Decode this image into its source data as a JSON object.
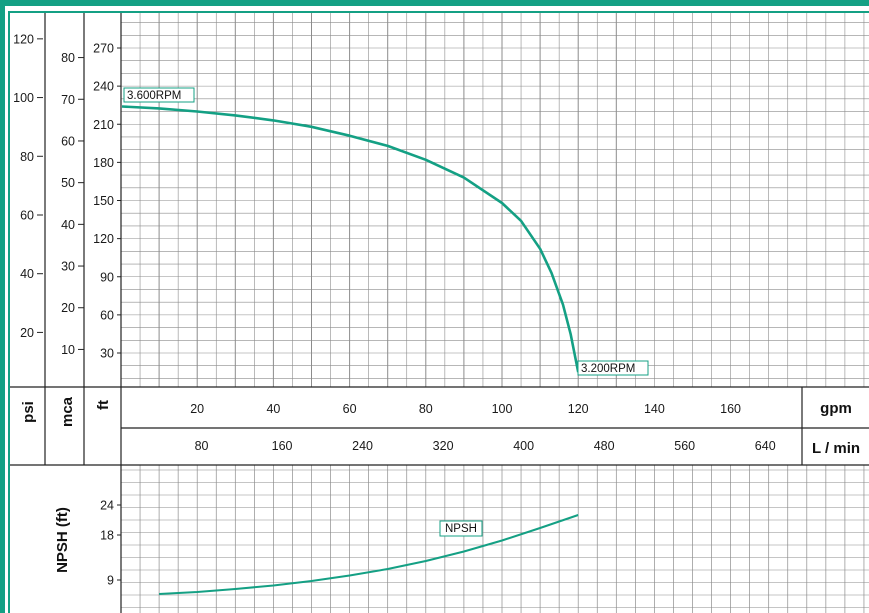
{
  "colors": {
    "frame": "#14a084",
    "curve": "#14a084",
    "grid": "#8c8c8c",
    "text": "#111111"
  },
  "chart_data": [
    {
      "type": "line",
      "title": "",
      "xlabel": "gpm",
      "x2label": "L / min",
      "ylabel_psi": "psi",
      "ylabel_mca": "mca",
      "ylabel_ft": "ft",
      "xlim": [
        0,
        176
      ],
      "ylim": [
        0,
        290
      ],
      "x_ticks": [
        "20",
        "40",
        "60",
        "80",
        "100",
        "120",
        "140",
        "160"
      ],
      "x2_ticks": [
        "80",
        "160",
        "240",
        "320",
        "400",
        "480",
        "560",
        "640"
      ],
      "y_ticks_ft": [
        "30",
        "60",
        "90",
        "120",
        "150",
        "180",
        "210",
        "240",
        "270"
      ],
      "y_ticks_mca": [
        "10",
        "20",
        "30",
        "40",
        "50",
        "60",
        "70",
        "80"
      ],
      "y_ticks_psi": [
        "20",
        "40",
        "60",
        "80",
        "100",
        "120"
      ],
      "series": [
        {
          "x": [
            0,
            10,
            20,
            30,
            40,
            50,
            60,
            70,
            80,
            90,
            100,
            105,
            110,
            113,
            116,
            118,
            119,
            120
          ],
          "y": [
            224,
            222.5,
            220,
            217,
            213,
            208,
            201,
            193,
            182,
            168,
            148,
            134,
            112,
            93,
            68,
            45,
            30,
            15
          ]
        }
      ],
      "annotations": [
        {
          "text": "3.600RPM",
          "x": 0,
          "y": 234
        },
        {
          "text": "3.200RPM",
          "x": 120,
          "y": 15
        }
      ]
    },
    {
      "type": "line",
      "ylabel": "NPSH (ft)",
      "ylim": [
        0,
        30
      ],
      "y_ticks": [
        "9",
        "18",
        "24"
      ],
      "series": [
        {
          "name": "NPSH",
          "x": [
            10,
            20,
            30,
            40,
            50,
            60,
            70,
            80,
            90,
            100,
            110,
            120
          ],
          "y": [
            6.2,
            6.6,
            7.2,
            7.9,
            8.8,
            9.9,
            11.2,
            12.8,
            14.7,
            16.9,
            19.4,
            22.0
          ]
        }
      ]
    }
  ]
}
